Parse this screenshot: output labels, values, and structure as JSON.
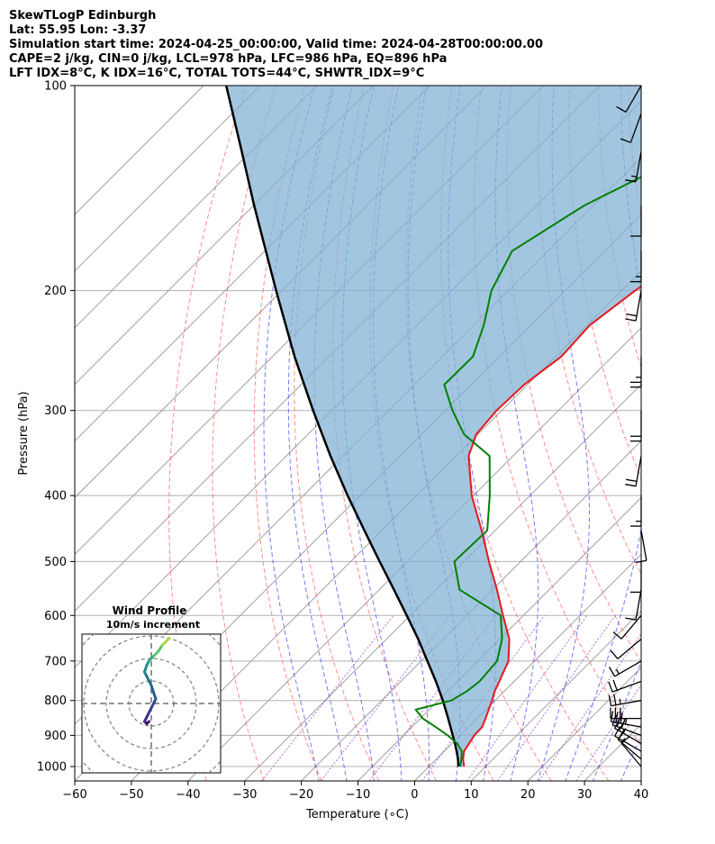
{
  "header": {
    "line1": "SkewTLogP Edinburgh",
    "line2": "Lat: 55.95   Lon: -3.37",
    "line3": "Simulation start time: 2024-04-25_00:00:00, Valid time: 2024-04-28T00:00:00.00",
    "line4": "CAPE=2 j/kg, CIN=0 j/kg, LCL=978 hPa, LFC=986 hPa, EQ=896 hPa",
    "line5": "LFT IDX=8°C, K IDX=16°C, TOTAL TOTS=44°C, SHWTR_IDX=9°C"
  },
  "inset": {
    "title": "Wind Profile",
    "subtitle": "10m/s increment"
  },
  "colors": {
    "temperature": "#e41a1c",
    "dewpoint": "#008000",
    "parcel": "#000000",
    "cin_cape_fill": "#7fb0d4",
    "dry_adiabat": "#ff4040",
    "moist_adiabat": "#3030ff",
    "mixing_ratio": "#9932cc",
    "isotherm": "#a0a0a0"
  },
  "chart_data": {
    "type": "skew-t log-p",
    "xlabel": "Temperature (∘C)",
    "ylabel": "Pressure (hPa)",
    "xlim": [
      -60,
      40
    ],
    "ylim": [
      1050,
      100
    ],
    "y_scale": "log",
    "x_ticks": [
      -60,
      -50,
      -40,
      -30,
      -20,
      -10,
      0,
      10,
      20,
      30,
      40
    ],
    "x_tick_labels": [
      "−60",
      "−50",
      "−40",
      "−30",
      "−20",
      "−10",
      "0",
      "10",
      "20",
      "30",
      "40"
    ],
    "y_ticks": [
      1000,
      900,
      800,
      700,
      600,
      500,
      400,
      300,
      200,
      100
    ],
    "grid": true,
    "series": [
      {
        "pressure": [
          1000,
          975,
          950,
          925,
          900,
          875,
          850,
          825,
          800,
          775,
          750,
          700,
          650,
          600,
          550,
          500,
          450,
          400,
          350,
          325,
          300,
          275,
          250,
          225,
          200,
          175,
          150,
          125,
          110,
          100
        ],
        "values": [
          6.2,
          4.7,
          3.5,
          3.0,
          2.5,
          2.4,
          1.5,
          0.5,
          -0.5,
          -1.7,
          -2.6,
          -4.6,
          -8.3,
          -13.6,
          -19.2,
          -25.6,
          -32.4,
          -40.3,
          -47.8,
          -50.3,
          -50.9,
          -50.6,
          -49.0,
          -49.5,
          -47.6,
          -44.8,
          -40.5,
          -38.5,
          -37.7,
          -39.6
        ]
      },
      {
        "pressure": [
          1000,
          975,
          950,
          925,
          900,
          875,
          850,
          825,
          800,
          775,
          750,
          700,
          650,
          600,
          550,
          500,
          450,
          400,
          350,
          325,
          300,
          275,
          250,
          225,
          200,
          175,
          150,
          125,
          110,
          100
        ],
        "values": [
          5.5,
          4.4,
          3.1,
          0.9,
          -2.2,
          -5.8,
          -9.6,
          -12.4,
          -7.7,
          -6.6,
          -6.1,
          -6.6,
          -9.6,
          -14.0,
          -25.8,
          -31.7,
          -31.4,
          -37.1,
          -44.1,
          -52.5,
          -58.7,
          -64.7,
          -64.6,
          -68.2,
          -73.0,
          -76.3,
          -71.6,
          -62.1,
          -55.5,
          -52.5
        ]
      },
      {
        "pressure": [
          1000,
          975,
          950,
          925,
          900,
          850,
          800,
          750,
          700,
          650,
          600,
          550,
          500,
          450,
          400,
          350,
          300,
          250,
          200,
          150,
          125,
          100
        ],
        "values": [
          5.2,
          3.8,
          2.2,
          0.5,
          -1.3,
          -5.1,
          -9.2,
          -13.8,
          -18.9,
          -24.4,
          -30.6,
          -37.4,
          -44.9,
          -53.1,
          -62.2,
          -72.2,
          -83.3,
          -96.1,
          -111.0,
          -129.9,
          -141.6,
          -156.0
        ]
      }
    ],
    "wind_profile": {
      "rings_mps": [
        10,
        20,
        30,
        40
      ],
      "hodograph_u": [
        -1,
        -2,
        -3,
        -2,
        -1,
        0,
        2,
        1,
        0,
        -2,
        -3,
        -2,
        -1,
        0,
        1,
        3,
        5,
        8
      ],
      "hodograph_v": [
        -8,
        -9,
        -8,
        -6,
        -4,
        -2,
        2,
        5,
        8,
        12,
        14,
        17,
        19,
        20,
        21,
        23,
        26,
        29
      ]
    },
    "wind_barbs": {
      "pressure": [
        1000,
        975,
        950,
        925,
        900,
        875,
        850,
        800,
        750,
        700,
        650,
        600,
        550,
        500,
        450,
        400,
        350,
        300,
        250,
        200,
        175,
        150,
        125,
        110,
        100
      ],
      "speed_kt": [
        10,
        15,
        20,
        25,
        30,
        35,
        30,
        25,
        20,
        15,
        10,
        10,
        10,
        10,
        10,
        15,
        20,
        20,
        25,
        20,
        15,
        10,
        15,
        10,
        10
      ],
      "direction_deg": [
        320,
        310,
        300,
        300,
        290,
        280,
        270,
        260,
        250,
        240,
        230,
        220,
        190,
        180,
        170,
        180,
        190,
        180,
        180,
        190,
        180,
        180,
        190,
        200,
        210
      ]
    }
  }
}
